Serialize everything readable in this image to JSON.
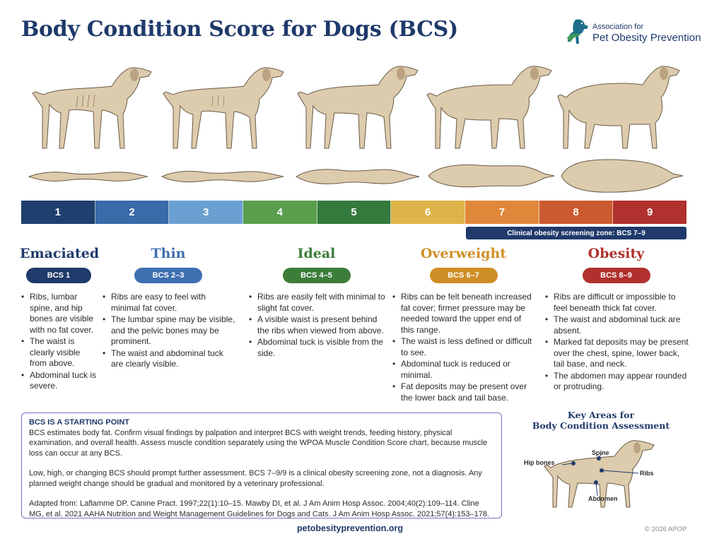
{
  "title": "Body Condition Score for Dogs (BCS)",
  "logo": {
    "line1": "Association for",
    "line2": "Pet Obesity Prevention",
    "icon": "dog-logo-icon",
    "colors": [
      "#1f6f8b",
      "#3b9a5a"
    ]
  },
  "scale": [
    {
      "label": "1",
      "color": "#1f3f6e"
    },
    {
      "label": "2",
      "color": "#3a6aa8"
    },
    {
      "label": "3",
      "color": "#6aa0d1"
    },
    {
      "label": "4",
      "color": "#5a9e4d"
    },
    {
      "label": "5",
      "color": "#347a3c"
    },
    {
      "label": "6",
      "color": "#dfb44a"
    },
    {
      "label": "7",
      "color": "#e0883a"
    },
    {
      "label": "8",
      "color": "#cb5a2e"
    },
    {
      "label": "9",
      "color": "#b0312d"
    }
  ],
  "zone": "Clinical obesity screening zone: BCS 7–9",
  "categories": [
    {
      "title": "Emaciated",
      "pill": "BCS 1",
      "color": "#1f3a6b",
      "bullets": [
        "Ribs, lumbar spine, and hip bones are visible with no fat cover.",
        "The waist is clearly visible from above.",
        "Abdominal tuck is severe."
      ]
    },
    {
      "title": "Thin",
      "pill": "BCS 2–3",
      "color": "#3e6fb0",
      "bullets": [
        "Ribs are easy to feel with minimal fat cover.",
        "The lumbar spine may be visible, and the pelvic bones may be prominent.",
        "The waist and abdominal tuck are clearly visible."
      ]
    },
    {
      "title": "Ideal",
      "pill": "BCS 4–5",
      "color": "#3d7d3a",
      "bullets": [
        "Ribs are easily felt with minimal to slight fat cover.",
        "A visible waist is present behind the ribs when viewed from above.",
        "Abdominal tuck is visible from the side."
      ]
    },
    {
      "title": "Overweight",
      "pill": "BCS 6–7",
      "color": "#cf8f27",
      "bullets": [
        "Ribs can be felt beneath increased fat cover; firmer pressure may be needed toward the upper end of this range.",
        "The waist is less defined or difficult to see.",
        "Abdominal tuck is reduced or minimal.",
        "Fat deposits may be present over the lower back and tail base."
      ]
    },
    {
      "title": "Obesity",
      "pill": "BCS 8–9",
      "color": "#b0312d",
      "bullets": [
        "Ribs are difficult or impossible to feel beneath thick fat cover.",
        "The waist and abdominal tuck are absent.",
        "Marked fat deposits may be present over the chest, spine, lower back, tail base, and neck.",
        "The abdomen may appear rounded or protruding."
      ]
    }
  ],
  "note": {
    "heading": "BCS IS A STARTING POINT",
    "p1": "BCS estimates body fat. Confirm visual findings by palpation and interpret BCS with weight trends, feeding history, physical examination, and overall health. Assess muscle condition separately using the WPOA Muscle Condition Score chart, because muscle loss can occur at any BCS.",
    "p2": "Low, high, or changing BCS should prompt further assessment. BCS 7–9/9 is a clinical obesity screening zone, not a diagnosis. Any planned weight change should be gradual and monitored by a veterinary professional.",
    "p3": "Adapted from: Laflamme DP. Canine Pract. 1997;22(1):10–15. Mawby DI, et al. J Am Anim Hosp Assoc. 2004;40(2):109–114. Cline MG, et al. 2021 AAHA Nutrition and Weight Management Guidelines for Dogs and Cats. J Am Anim Hosp Assoc. 2021;57(4):153–178."
  },
  "key": {
    "title_line1": "Key Areas for",
    "title_line2": "Body Condition Assessment",
    "spine": "Spine",
    "hip": "Hip bones",
    "ribs": "Ribs",
    "abdomen": "Abdomen"
  },
  "footer_url": "petobesityprevention.org",
  "copyright": "© 2026 APOP"
}
